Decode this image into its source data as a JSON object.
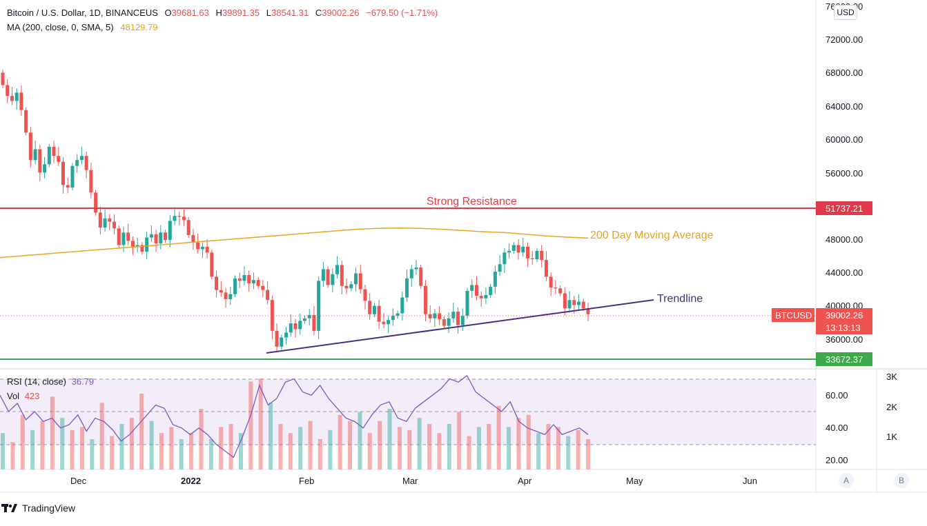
{
  "header": {
    "symbol_line": "Bitcoin / U.S. Dollar, 1D, BINANCEUS",
    "ohlc": [
      {
        "key": "O",
        "value": "39681.63"
      },
      {
        "key": "H",
        "value": "39891.35"
      },
      {
        "key": "L",
        "value": "38541.31"
      },
      {
        "key": "C",
        "value": "39002.26"
      }
    ],
    "change": "−679.50 (−1.71%)",
    "ma_label": "MA (200, close, 0, SMA, 5)",
    "ma_value": "48129.79"
  },
  "currency_button": "USD",
  "price_axis": {
    "ticks": [
      "76000.00",
      "72000.00",
      "68000.00",
      "64000.00",
      "60000.00",
      "56000.00",
      "48000.00",
      "44000.00",
      "40000.00",
      "36000.00"
    ],
    "resistance_label": "51737.21",
    "support_label": "33672.37",
    "last_price_label": "39002.26",
    "countdown_label": "13:13:13",
    "symbol_tag": "BTCUSD"
  },
  "annotations": {
    "resistance": "Strong Resistance",
    "ma": "200 Day Moving Average",
    "trendline": "Trendline"
  },
  "indicator_pane": {
    "rsi_label": "RSI (14, close)",
    "rsi_value": "36.79",
    "vol_label": "Vol",
    "vol_value": "423",
    "rsi_ticks": [
      "60.00",
      "40.00",
      "20.00"
    ],
    "vol_ticks": [
      "3K",
      "2K",
      "1K"
    ]
  },
  "time_axis": {
    "labels": [
      "Dec",
      "2022",
      "Feb",
      "Mar",
      "Apr",
      "May",
      "Jun"
    ]
  },
  "corner_buttons": {
    "auto": "A",
    "base": "B"
  },
  "brand": {
    "name": "TradingView"
  },
  "colors": {
    "up": "#26a69a",
    "down": "#ef5350",
    "ma": "#e8a31f",
    "resistance": "#e0394a",
    "support": "#3ea84a",
    "trendline": "#4a2e83",
    "rsi": "#7e57c2",
    "rsi_band": "#ede7f6"
  },
  "chart_data": {
    "type": "candlestick",
    "title": "Bitcoin / U.S. Dollar, 1D, BINANCEUS",
    "interval": "1D",
    "y_range": [
      32000,
      76000
    ],
    "x_labels": [
      "Dec",
      "2022",
      "Feb",
      "Mar",
      "Apr",
      "May",
      "Jun"
    ],
    "resistance_level": 51737.21,
    "support_level": 33672.37,
    "last_close": 39002.26,
    "ma200_last": 48129.79,
    "candles_close": [
      66500,
      65200,
      64600,
      65600,
      63500,
      60800,
      57500,
      58800,
      56000,
      57000,
      59100,
      58000,
      57300,
      54500,
      54200,
      56800,
      57500,
      58000,
      56300,
      53600,
      51200,
      49400,
      50500,
      50100,
      49300,
      47300,
      48800,
      47800,
      47100,
      47300,
      46500,
      48200,
      48600,
      47500,
      48800,
      47900,
      50200,
      50800,
      50700,
      50300,
      48500,
      47600,
      46800,
      47100,
      46400,
      43500,
      41900,
      41600,
      40800,
      41400,
      43300,
      43000,
      43700,
      42700,
      43100,
      42400,
      41900,
      40700,
      37000,
      35100,
      36200,
      36800,
      37900,
      37200,
      38200,
      38500,
      38900,
      37000,
      43000,
      44400,
      42500,
      43800,
      44900,
      42400,
      42100,
      42600,
      43900,
      42000,
      40600,
      39000,
      40000,
      38100,
      37800,
      38300,
      38800,
      39100,
      41000,
      43300,
      44400,
      44600,
      42400,
      39000,
      38500,
      39100,
      38400,
      37600,
      38500,
      39300,
      37700,
      38800,
      41800,
      42500,
      41200,
      40900,
      41300,
      42300,
      44100,
      45000,
      46400,
      46600,
      47300,
      46400,
      47100,
      45700,
      45600,
      46600,
      45500,
      43500,
      42200,
      42100,
      41500,
      39700,
      40700,
      40100,
      40500,
      39700,
      39002
    ],
    "ma200": [
      45800,
      46000,
      46200,
      46400,
      46600,
      46800,
      47000,
      47200,
      47400,
      47600,
      47800,
      48000,
      48200,
      48400,
      48600,
      48800,
      49000,
      49200,
      49300,
      49350,
      49300,
      49200,
      49050,
      48900,
      48800,
      48600,
      48400,
      48250,
      48130
    ],
    "rsi": [
      60,
      50,
      55,
      45,
      50,
      44,
      46,
      40,
      42,
      48,
      38,
      46,
      44,
      39,
      32,
      36,
      42,
      48,
      54,
      52,
      42,
      40,
      36,
      40,
      36,
      30,
      26,
      22,
      34,
      48,
      66,
      54,
      58,
      68,
      70,
      62,
      60,
      66,
      58,
      52,
      46,
      44,
      40,
      48,
      54,
      56,
      46,
      44,
      52,
      56,
      60,
      64,
      70,
      68,
      72,
      62,
      58,
      54,
      50,
      56,
      44,
      40,
      38,
      36,
      42,
      36,
      38,
      40,
      36
    ],
    "volume": [
      1.2,
      0.9,
      1.8,
      1.3,
      1.6,
      2.4,
      1.7,
      1.3,
      1.4,
      1.0,
      2.2,
      1.1,
      1.5,
      1.7,
      2.5,
      1.6,
      1.2,
      1.4,
      1.0,
      1.2,
      2.0,
      1.0,
      1.4,
      1.5,
      1.2,
      2.9,
      3.0,
      2.2,
      1.5,
      1.2,
      1.4,
      1.6,
      1.0,
      1.3,
      1.8,
      1.6,
      1.9,
      1.2,
      1.6,
      2.0,
      1.4,
      1.3,
      1.7,
      1.5,
      1.2,
      1.5,
      1.9,
      1.1,
      1.4,
      1.5,
      2.1,
      1.4,
      1.7,
      1.8,
      1.2,
      1.5,
      1.4,
      1.1,
      1.3,
      1.0
    ]
  }
}
